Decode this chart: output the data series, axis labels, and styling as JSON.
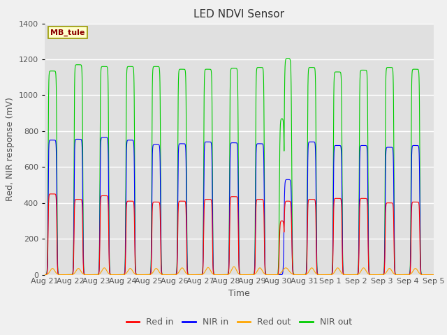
{
  "title": "LED NDVI Sensor",
  "ylabel": "Red, NIR response (mV)",
  "xlabel": "Time",
  "annotation": "MB_tule",
  "ylim": [
    0,
    1400
  ],
  "x_tick_labels": [
    "Aug 21",
    "Aug 22",
    "Aug 23",
    "Aug 24",
    "Aug 25",
    "Aug 26",
    "Aug 27",
    "Aug 28",
    "Aug 29",
    "Aug 30",
    "Aug 31",
    "Sep 1",
    "Sep 2",
    "Sep 3",
    "Sep 4",
    "Sep 5"
  ],
  "background_color": "#f0f0f0",
  "plot_bg_color": "#e0e0e0",
  "legend_entries": [
    "Red in",
    "NIR in",
    "Red out",
    "NIR out"
  ],
  "legend_colors": [
    "#ff0000",
    "#0000ff",
    "#ffa500",
    "#00cc00"
  ],
  "red_in_peaks": [
    450,
    420,
    440,
    410,
    405,
    410,
    420,
    435,
    420,
    415,
    420,
    425,
    425,
    400,
    405
  ],
  "nir_in_peaks": [
    750,
    755,
    765,
    750,
    725,
    730,
    740,
    735,
    730,
    530,
    740,
    720,
    720,
    710,
    720
  ],
  "red_out_peaks": [
    35,
    35,
    38,
    35,
    35,
    38,
    40,
    45,
    38,
    38,
    38,
    38,
    38,
    35,
    35
  ],
  "nir_out_peaks": [
    1135,
    1170,
    1160,
    1160,
    1160,
    1145,
    1145,
    1150,
    1155,
    1205,
    1155,
    1130,
    1140,
    1155,
    1145
  ],
  "num_cycles": 15,
  "title_fontsize": 11,
  "label_fontsize": 9,
  "tick_fontsize": 8,
  "figsize": [
    6.4,
    4.8
  ],
  "dpi": 100
}
